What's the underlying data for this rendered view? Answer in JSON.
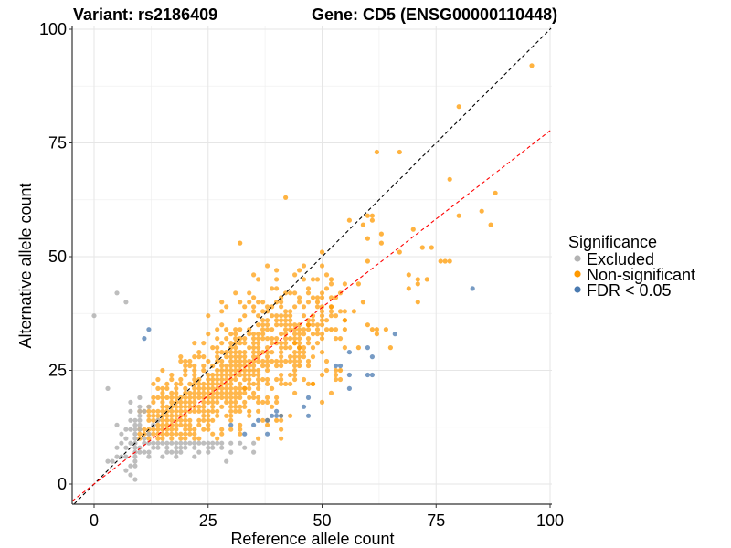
{
  "chart_data": {
    "type": "scatter",
    "title_left": "Variant: rs2186409",
    "title_right": "Gene: CD5 (ENSG00000110448)",
    "xlabel": "Reference allele count",
    "ylabel": "Alternative allele count",
    "xlim": [
      -4.8,
      100.2
    ],
    "ylim": [
      -4.4,
      100.2
    ],
    "x_ticks": [
      0,
      25,
      50,
      75,
      100
    ],
    "y_ticks": [
      0,
      25,
      50,
      75,
      100
    ],
    "x_tick_labels": [
      "0",
      "25",
      "50",
      "75",
      "100"
    ],
    "y_tick_labels": [
      "0",
      "25",
      "50",
      "75",
      "100"
    ],
    "grid": true,
    "legend": {
      "title": "Significance",
      "position": "right",
      "entries": [
        {
          "label": "Excluded",
          "color": "#b3b3b3"
        },
        {
          "label": "Non-significant",
          "color": "#ff9900"
        },
        {
          "label": "FDR < 0.05",
          "color": "#4a7ab0"
        }
      ]
    },
    "reference_lines": [
      {
        "name": "identity",
        "slope": 1.0,
        "intercept": 0,
        "color": "#000000",
        "style": "dashed"
      },
      {
        "name": "fit",
        "slope": 0.777,
        "intercept": 0,
        "color": "#ff0000",
        "style": "dashed"
      }
    ],
    "series": [
      {
        "name": "Excluded",
        "color": "#b3b3b3",
        "points": [
          [
            0,
            37
          ],
          [
            5,
            42
          ],
          [
            7,
            40
          ],
          [
            3,
            21
          ],
          [
            9,
            1
          ],
          [
            5,
            6
          ],
          [
            3,
            5
          ],
          [
            7,
            3
          ],
          [
            7,
            8
          ],
          [
            8,
            4
          ],
          [
            8,
            9
          ],
          [
            9,
            4
          ],
          [
            9,
            5
          ],
          [
            9,
            6
          ],
          [
            9,
            7
          ],
          [
            9,
            8
          ],
          [
            9,
            9
          ],
          [
            10,
            8
          ],
          [
            11,
            9
          ],
          [
            12,
            9
          ],
          [
            13,
            9
          ],
          [
            14,
            9
          ],
          [
            15,
            9
          ],
          [
            16,
            9
          ],
          [
            17,
            9
          ],
          [
            18,
            9
          ],
          [
            19,
            9
          ],
          [
            20,
            9
          ],
          [
            21,
            9
          ],
          [
            22,
            9
          ],
          [
            23,
            9
          ],
          [
            24,
            9
          ],
          [
            25,
            9
          ],
          [
            26,
            9
          ],
          [
            27,
            9
          ],
          [
            28,
            9
          ],
          [
            30,
            9
          ],
          [
            32,
            9
          ],
          [
            35,
            9
          ],
          [
            10,
            7
          ],
          [
            11,
            7
          ],
          [
            12,
            7
          ],
          [
            13,
            8
          ],
          [
            14,
            8
          ],
          [
            16,
            8
          ],
          [
            18,
            8
          ],
          [
            19,
            8
          ],
          [
            20,
            8
          ],
          [
            22,
            8
          ],
          [
            25,
            8
          ],
          [
            26,
            8
          ],
          [
            28,
            8
          ],
          [
            33,
            8
          ],
          [
            35,
            7
          ],
          [
            16,
            7
          ],
          [
            17,
            7
          ],
          [
            18,
            7
          ],
          [
            19,
            7
          ],
          [
            23,
            7
          ],
          [
            25,
            7
          ],
          [
            30,
            7
          ],
          [
            12,
            6
          ],
          [
            15,
            6
          ],
          [
            18,
            6
          ],
          [
            22,
            6
          ],
          [
            29,
            5
          ],
          [
            9,
            10
          ],
          [
            9,
            11
          ],
          [
            9,
            12
          ],
          [
            9,
            13
          ],
          [
            9,
            14
          ],
          [
            8,
            12
          ],
          [
            8,
            14
          ],
          [
            7,
            10
          ],
          [
            7,
            12
          ],
          [
            6,
            11
          ],
          [
            6,
            9
          ],
          [
            8,
            16
          ],
          [
            8,
            18
          ],
          [
            5,
            13
          ],
          [
            11,
            16
          ],
          [
            12,
            17
          ],
          [
            14,
            14
          ],
          [
            11,
            10
          ],
          [
            12,
            11
          ],
          [
            13,
            13
          ],
          [
            10,
            17
          ],
          [
            10,
            19
          ],
          [
            10,
            12
          ],
          [
            10,
            13
          ],
          [
            10,
            14
          ],
          [
            10,
            15
          ],
          [
            10,
            16
          ],
          [
            5,
            8
          ],
          [
            6,
            6
          ],
          [
            7,
            6
          ],
          [
            8,
            2
          ],
          [
            4,
            5
          ]
        ]
      },
      {
        "name": "Non-significant",
        "color": "#ff9900",
        "points": [
          [
            96,
            92
          ],
          [
            80,
            83
          ],
          [
            62,
            73
          ],
          [
            67,
            73
          ],
          [
            78,
            67
          ],
          [
            88,
            64
          ],
          [
            85,
            60
          ],
          [
            80,
            59
          ],
          [
            60,
            59
          ],
          [
            61,
            59
          ],
          [
            56,
            58
          ],
          [
            59,
            57
          ],
          [
            87,
            57
          ],
          [
            70,
            56
          ],
          [
            63,
            53
          ],
          [
            42,
            63
          ],
          [
            32,
            53
          ],
          [
            74,
            52
          ],
          [
            76,
            49
          ],
          [
            77,
            49
          ],
          [
            78,
            49
          ],
          [
            67,
            51
          ],
          [
            71,
            45
          ],
          [
            73,
            45
          ],
          [
            69,
            46
          ],
          [
            72,
            52
          ],
          [
            60,
            54
          ],
          [
            63,
            55
          ],
          [
            61,
            58
          ],
          [
            60,
            49
          ],
          [
            58,
            44
          ],
          [
            69,
            43
          ],
          [
            71,
            44
          ],
          [
            71,
            40
          ],
          [
            59,
            40
          ],
          [
            52,
            45
          ],
          [
            50,
            51
          ],
          [
            52,
            39
          ],
          [
            55,
            36
          ],
          [
            49,
            40
          ],
          [
            62,
            33
          ],
          [
            65,
            30
          ],
          [
            57,
            38
          ],
          [
            64,
            34
          ],
          [
            62,
            34
          ],
          [
            61,
            34
          ],
          [
            55,
            34
          ],
          [
            52,
            34
          ],
          [
            58,
            30
          ],
          [
            60,
            35
          ],
          [
            45,
            26
          ],
          [
            54,
            25
          ],
          [
            48,
            22
          ],
          [
            33,
            21
          ],
          [
            38,
            13
          ],
          [
            34,
            16
          ],
          [
            40,
            14
          ],
          [
            45,
            30
          ],
          [
            44,
            31
          ],
          [
            47,
            35
          ]
        ]
      },
      {
        "name": "FDR < 0.05",
        "color": "#4a7ab0",
        "points": [
          [
            83,
            43
          ],
          [
            66,
            33
          ],
          [
            60,
            30
          ],
          [
            61,
            28
          ],
          [
            56,
            29
          ],
          [
            53,
            26
          ],
          [
            54,
            26
          ],
          [
            56,
            24
          ],
          [
            60,
            24
          ],
          [
            61,
            24
          ],
          [
            56,
            21
          ],
          [
            47,
            19
          ],
          [
            46,
            17
          ],
          [
            47,
            15
          ],
          [
            40,
            15
          ],
          [
            41,
            15
          ],
          [
            39,
            15
          ],
          [
            40,
            16
          ],
          [
            38,
            14
          ],
          [
            36,
            14
          ],
          [
            35,
            13
          ],
          [
            30,
            13
          ],
          [
            33,
            11
          ],
          [
            38,
            11
          ],
          [
            12,
            34
          ],
          [
            11,
            32
          ]
        ]
      }
    ],
    "dense_cloud": {
      "category": "Non-significant",
      "description": "dense lattice of integer (ref, alt) counts concentrated between ref 10-55 and alt 10-45 around slope 0.8",
      "ref_range": [
        10,
        55
      ],
      "alt_range": [
        10,
        50
      ]
    }
  }
}
